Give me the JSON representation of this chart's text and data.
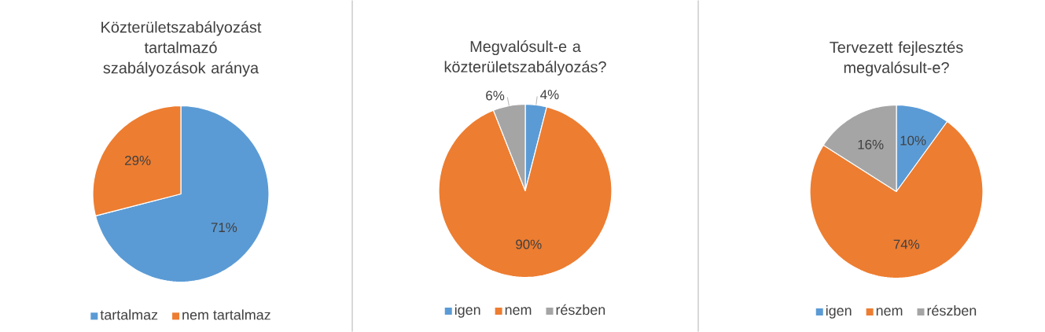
{
  "chart_data": [
    {
      "type": "pie",
      "title": "Közterületszabályozást tartalmazó szabályozások aránya",
      "categories": [
        "tartalmaz",
        "nem tartalmaz"
      ],
      "values": [
        71,
        29
      ],
      "value_labels": [
        "71%",
        "29%"
      ],
      "colors": [
        "#5b9bd5",
        "#ed7d31"
      ],
      "legend": "bottom"
    },
    {
      "type": "pie",
      "title": "Megvalósult-e a közterületszabályozás?",
      "categories": [
        "igen",
        "nem",
        "részben"
      ],
      "values": [
        4,
        90,
        6
      ],
      "value_labels": [
        "4%",
        "90%",
        "6%"
      ],
      "colors": [
        "#5b9bd5",
        "#ed7d31",
        "#a5a5a5"
      ],
      "legend": "bottom"
    },
    {
      "type": "pie",
      "title": "Tervezett fejlesztés megvalósult-e?",
      "categories": [
        "igen",
        "nem",
        "részben"
      ],
      "values": [
        10,
        74,
        16
      ],
      "value_labels": [
        "10%",
        "74%",
        "16%"
      ],
      "colors": [
        "#5b9bd5",
        "#ed7d31",
        "#a5a5a5"
      ],
      "legend": "bottom"
    }
  ]
}
